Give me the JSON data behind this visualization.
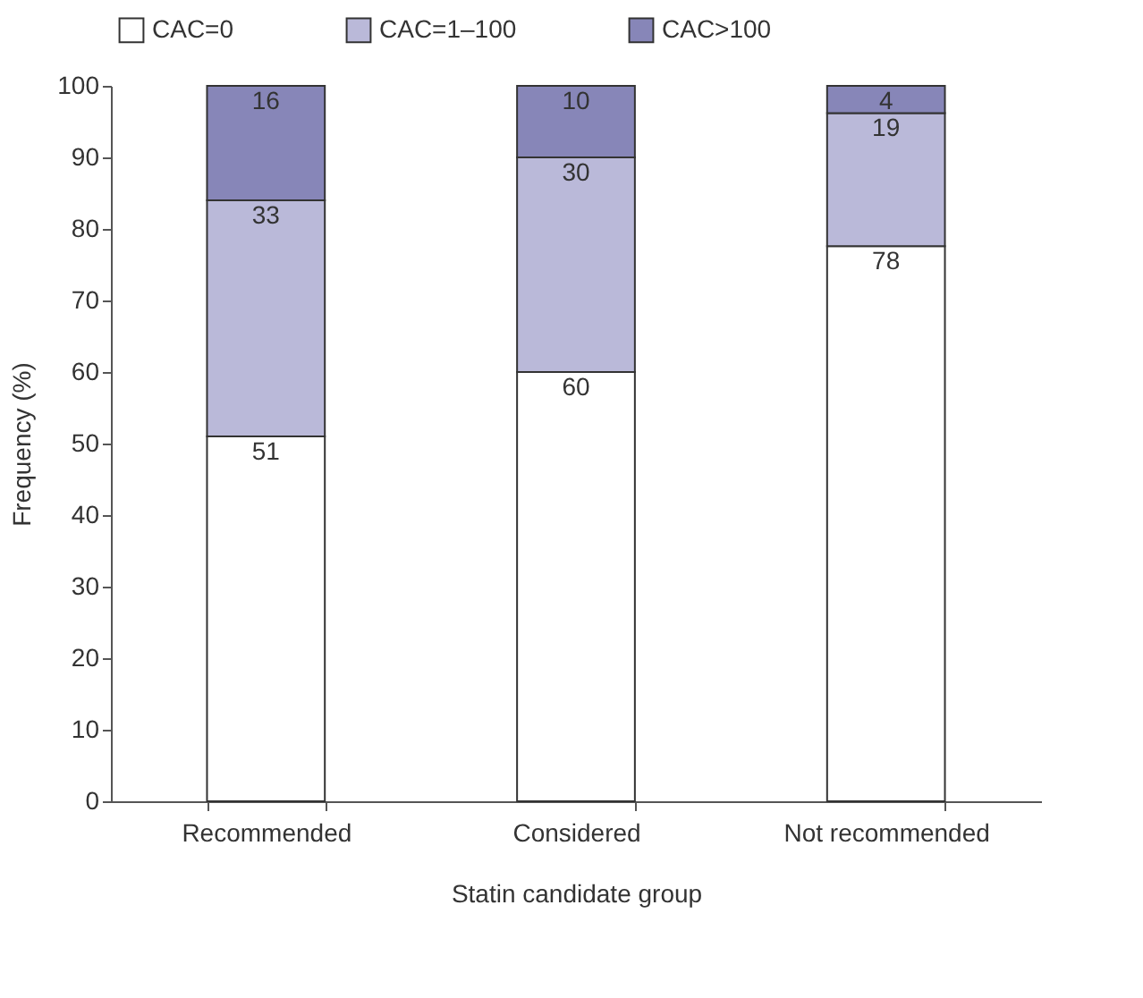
{
  "chart_data": {
    "type": "bar",
    "stacked": true,
    "xlabel": "Statin candidate group",
    "ylabel": "Frequency (%)",
    "categories": [
      "Recommended",
      "Considered",
      "Not recommended"
    ],
    "series": [
      {
        "name": "CAC=0",
        "color": "#ffffff",
        "values": [
          51,
          60,
          77.6
        ],
        "value_labels": [
          "51",
          "60",
          "78"
        ]
      },
      {
        "name": "CAC=1–100",
        "color": "#bab9d9",
        "values": [
          33,
          30,
          18.6
        ],
        "value_labels": [
          "33",
          "30",
          "19"
        ]
      },
      {
        "name": "CAC>100",
        "color": "#8786b8",
        "values": [
          16,
          10,
          3.8
        ],
        "value_labels": [
          "16",
          "10",
          "4"
        ]
      }
    ],
    "ylim": [
      0,
      100
    ],
    "yticks": [
      0,
      10,
      20,
      30,
      40,
      50,
      60,
      70,
      80,
      90,
      100
    ],
    "grid": false,
    "legend": "top"
  }
}
